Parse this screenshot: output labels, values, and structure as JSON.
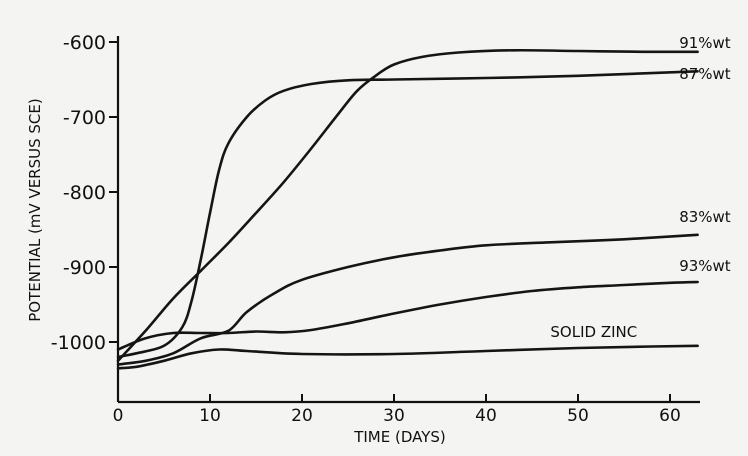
{
  "chart_data": {
    "type": "line",
    "title": "",
    "xlabel": "TIME (DAYS)",
    "ylabel": "POTENTIAL  (mV VERSUS SCE)",
    "xlim": [
      0,
      66
    ],
    "ylim": [
      -1050,
      -590
    ],
    "x_ticks": [
      0,
      10,
      20,
      30,
      40,
      50,
      60
    ],
    "x_tick_labels": [
      "0",
      "10",
      "20",
      "30",
      "40",
      "50",
      "60"
    ],
    "y_ticks": [
      -600,
      -700,
      -800,
      -900,
      -1000
    ],
    "y_tick_labels": [
      "-600",
      "-700",
      "-800",
      "-900",
      "-1000"
    ],
    "grid": false,
    "legend": "none",
    "series": [
      {
        "name": "91%wt",
        "label_at": [
          61,
          -608
        ],
        "points": [
          [
            0,
            -1025
          ],
          [
            3,
            -985
          ],
          [
            6,
            -942
          ],
          [
            9,
            -905
          ],
          [
            12,
            -868
          ],
          [
            15,
            -828
          ],
          [
            18,
            -787
          ],
          [
            21,
            -742
          ],
          [
            24,
            -695
          ],
          [
            26,
            -665
          ],
          [
            28,
            -645
          ],
          [
            30,
            -630
          ],
          [
            33,
            -620
          ],
          [
            37,
            -614
          ],
          [
            43,
            -611
          ],
          [
            50,
            -612
          ],
          [
            57,
            -613
          ],
          [
            63,
            -613
          ]
        ]
      },
      {
        "name": "87%wt",
        "label_at": [
          61,
          -649
        ],
        "points": [
          [
            0,
            -1020
          ],
          [
            2,
            -1015
          ],
          [
            5,
            -1005
          ],
          [
            7,
            -980
          ],
          [
            8,
            -945
          ],
          [
            9,
            -890
          ],
          [
            10,
            -828
          ],
          [
            11,
            -770
          ],
          [
            12,
            -735
          ],
          [
            14,
            -700
          ],
          [
            16,
            -678
          ],
          [
            18,
            -665
          ],
          [
            21,
            -656
          ],
          [
            25,
            -651
          ],
          [
            30,
            -650
          ],
          [
            40,
            -648
          ],
          [
            50,
            -645
          ],
          [
            63,
            -639
          ]
        ]
      },
      {
        "name": "83%wt",
        "label_at": [
          61,
          -840
        ],
        "points": [
          [
            0,
            -1030
          ],
          [
            3,
            -1025
          ],
          [
            6,
            -1015
          ],
          [
            9,
            -995
          ],
          [
            12,
            -985
          ],
          [
            14,
            -960
          ],
          [
            17,
            -935
          ],
          [
            20,
            -917
          ],
          [
            25,
            -900
          ],
          [
            30,
            -887
          ],
          [
            35,
            -878
          ],
          [
            40,
            -871
          ],
          [
            47,
            -867
          ],
          [
            55,
            -863
          ],
          [
            63,
            -857
          ]
        ]
      },
      {
        "name": "93%wt",
        "label_at": [
          61,
          -905
        ],
        "points": [
          [
            0,
            -1010
          ],
          [
            3,
            -995
          ],
          [
            6,
            -988
          ],
          [
            9,
            -988
          ],
          [
            12,
            -988
          ],
          [
            15,
            -986
          ],
          [
            18,
            -987
          ],
          [
            21,
            -984
          ],
          [
            25,
            -975
          ],
          [
            30,
            -962
          ],
          [
            35,
            -950
          ],
          [
            40,
            -940
          ],
          [
            45,
            -932
          ],
          [
            50,
            -927
          ],
          [
            55,
            -924
          ],
          [
            60,
            -921
          ],
          [
            63,
            -920
          ]
        ]
      },
      {
        "name": "SOLID ZINC",
        "label_at": [
          47,
          -993
        ],
        "points": [
          [
            0,
            -1035
          ],
          [
            2,
            -1033
          ],
          [
            5,
            -1025
          ],
          [
            8,
            -1015
          ],
          [
            11,
            -1010
          ],
          [
            14,
            -1012
          ],
          [
            20,
            -1016
          ],
          [
            30,
            -1016
          ],
          [
            40,
            -1012
          ],
          [
            50,
            -1008
          ],
          [
            58,
            -1006
          ],
          [
            63,
            -1005
          ]
        ]
      }
    ]
  }
}
